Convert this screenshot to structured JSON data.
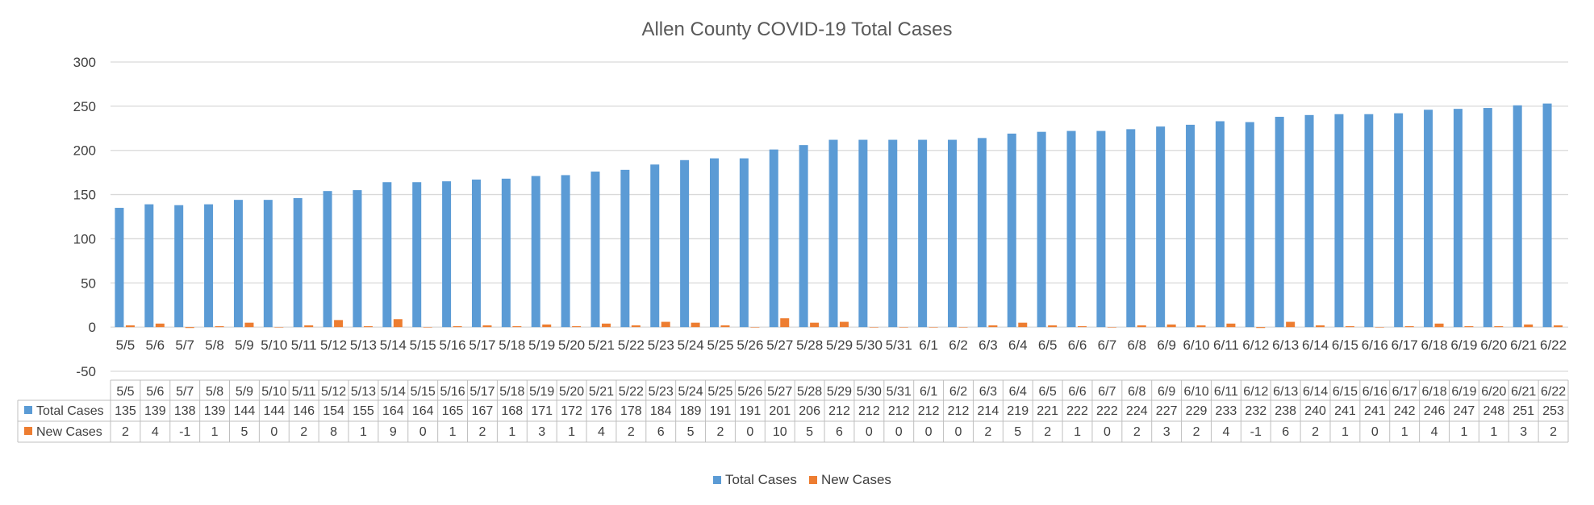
{
  "chart_data": {
    "type": "bar",
    "title": "Allen County COVID-19 Total Cases",
    "xlabel": "",
    "ylabel": "",
    "ylim": [
      -50,
      300
    ],
    "yticks": [
      300,
      250,
      200,
      150,
      100,
      50,
      0,
      -50
    ],
    "grid": true,
    "legend": "bottom",
    "data_table": true,
    "categories": [
      "5/5",
      "5/6",
      "5/7",
      "5/8",
      "5/9",
      "5/10",
      "5/11",
      "5/12",
      "5/13",
      "5/14",
      "5/15",
      "5/16",
      "5/17",
      "5/18",
      "5/19",
      "5/20",
      "5/21",
      "5/22",
      "5/23",
      "5/24",
      "5/25",
      "5/26",
      "5/27",
      "5/28",
      "5/29",
      "5/30",
      "5/31",
      "6/1",
      "6/2",
      "6/3",
      "6/4",
      "6/5",
      "6/6",
      "6/7",
      "6/8",
      "6/9",
      "6/10",
      "6/11",
      "6/12",
      "6/13",
      "6/14",
      "6/15",
      "6/16",
      "6/17",
      "6/18",
      "6/19",
      "6/20",
      "6/21",
      "6/22"
    ],
    "series": [
      {
        "name": "Total Cases",
        "color": "#5b9bd5",
        "values": [
          135,
          139,
          138,
          139,
          144,
          144,
          146,
          154,
          155,
          164,
          164,
          165,
          167,
          168,
          171,
          172,
          176,
          178,
          184,
          189,
          191,
          191,
          201,
          206,
          212,
          212,
          212,
          212,
          212,
          214,
          219,
          221,
          222,
          222,
          224,
          227,
          229,
          233,
          232,
          238,
          240,
          241,
          241,
          242,
          246,
          247,
          248,
          251,
          253
        ]
      },
      {
        "name": "New Cases",
        "color": "#ed7d31",
        "values": [
          2,
          4,
          -1,
          1,
          5,
          0,
          2,
          8,
          1,
          9,
          0,
          1,
          2,
          1,
          3,
          1,
          4,
          2,
          6,
          5,
          2,
          0,
          10,
          5,
          6,
          0,
          0,
          0,
          0,
          2,
          5,
          2,
          1,
          0,
          2,
          3,
          2,
          4,
          -1,
          6,
          2,
          1,
          0,
          1,
          4,
          1,
          1,
          3,
          2
        ]
      }
    ]
  }
}
